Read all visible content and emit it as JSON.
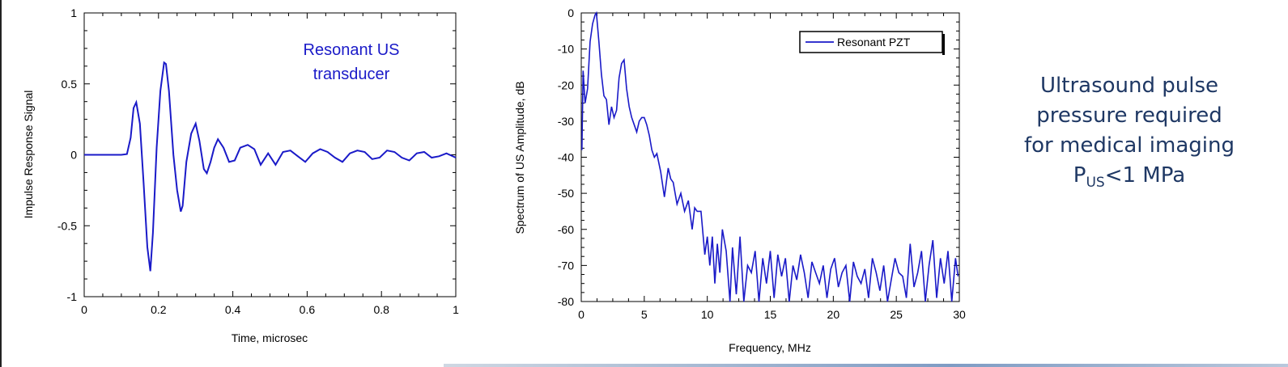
{
  "colors": {
    "series": "#1a1ac8",
    "text_note": "#1f3864",
    "axis": "#000000"
  },
  "chart_data": [
    {
      "type": "line",
      "title": "",
      "xlabel": "Time, microsec",
      "ylabel": "Impulse Response Signal",
      "xlim": [
        0,
        1
      ],
      "ylim": [
        -1,
        1
      ],
      "xticks": [
        "0",
        "0.2",
        "0.4",
        "0.6",
        "0.8",
        "1"
      ],
      "yticks": [
        "1",
        "0.5",
        "0",
        "-0.5",
        "-1"
      ],
      "annotation": [
        "Resonant US",
        "transducer"
      ],
      "series": [
        {
          "x": [
            0,
            0.1,
            0.115,
            0.125,
            0.133,
            0.14,
            0.15,
            0.16,
            0.17,
            0.178,
            0.185,
            0.195,
            0.205,
            0.215,
            0.22,
            0.228,
            0.24,
            0.25,
            0.26,
            0.265,
            0.275,
            0.288,
            0.3,
            0.31,
            0.322,
            0.33,
            0.34,
            0.35,
            0.36,
            0.375,
            0.39,
            0.405,
            0.42,
            0.44,
            0.458,
            0.475,
            0.495,
            0.515,
            0.535,
            0.555,
            0.575,
            0.595,
            0.615,
            0.635,
            0.655,
            0.675,
            0.695,
            0.715,
            0.735,
            0.755,
            0.775,
            0.795,
            0.815,
            0.835,
            0.855,
            0.875,
            0.895,
            0.915,
            0.935,
            0.955,
            0.975,
            1.0
          ],
          "y": [
            0,
            0,
            0.005,
            0.12,
            0.33,
            0.37,
            0.22,
            -0.2,
            -0.65,
            -0.82,
            -0.55,
            0.05,
            0.45,
            0.65,
            0.64,
            0.45,
            0.0,
            -0.25,
            -0.4,
            -0.36,
            -0.05,
            0.15,
            0.22,
            0.1,
            -0.1,
            -0.13,
            -0.05,
            0.05,
            0.11,
            0.05,
            -0.05,
            -0.04,
            0.05,
            0.07,
            0.04,
            -0.07,
            0.01,
            -0.07,
            0.02,
            0.03,
            -0.01,
            -0.05,
            0.01,
            0.04,
            0.02,
            -0.02,
            -0.05,
            0.01,
            0.03,
            0.02,
            -0.03,
            -0.02,
            0.03,
            0.02,
            -0.02,
            -0.04,
            0.01,
            0.02,
            -0.02,
            -0.01,
            0.01,
            -0.02
          ]
        }
      ]
    },
    {
      "type": "line",
      "title": "",
      "xlabel": "Frequency, MHz",
      "ylabel": "Spectrum of US Amplitude, dB",
      "xlim": [
        0,
        30
      ],
      "ylim": [
        -80,
        0
      ],
      "xticks": [
        "0",
        "5",
        "10",
        "15",
        "20",
        "25",
        "30"
      ],
      "yticks": [
        "0",
        "-10",
        "-20",
        "-30",
        "-40",
        "-50",
        "-60",
        "-70",
        "-80"
      ],
      "legend": {
        "position": "top-right",
        "entries": [
          "Resonant PZT"
        ]
      },
      "series": [
        {
          "name": "Resonant PZT",
          "x": [
            0.05,
            0.15,
            0.3,
            0.5,
            0.7,
            0.9,
            1.1,
            1.2,
            1.4,
            1.6,
            1.8,
            2.0,
            2.2,
            2.4,
            2.6,
            2.8,
            3.0,
            3.2,
            3.4,
            3.6,
            3.8,
            4.0,
            4.2,
            4.4,
            4.6,
            4.8,
            5.0,
            5.2,
            5.4,
            5.6,
            5.8,
            6.0,
            6.3,
            6.6,
            6.9,
            7.1,
            7.3,
            7.6,
            7.9,
            8.2,
            8.5,
            8.8,
            9.0,
            9.2,
            9.5,
            9.8,
            10.0,
            10.2,
            10.4,
            10.6,
            10.8,
            11.0,
            11.2,
            11.5,
            11.8,
            12.0,
            12.3,
            12.6,
            12.9,
            13.2,
            13.5,
            13.8,
            14.1,
            14.4,
            14.7,
            15.0,
            15.3,
            15.6,
            15.9,
            16.2,
            16.5,
            16.8,
            17.1,
            17.4,
            17.7,
            18.0,
            18.3,
            18.6,
            18.9,
            19.2,
            19.5,
            19.8,
            20.1,
            20.4,
            20.7,
            21.0,
            21.3,
            21.6,
            21.9,
            22.2,
            22.5,
            22.8,
            23.1,
            23.4,
            23.7,
            24.0,
            24.3,
            24.6,
            24.9,
            25.2,
            25.5,
            25.8,
            26.1,
            26.4,
            26.7,
            27.0,
            27.3,
            27.6,
            27.9,
            28.2,
            28.5,
            28.8,
            29.1,
            29.4,
            29.7,
            29.9
          ],
          "y": [
            -38,
            -16,
            -25,
            -21,
            -8,
            -3,
            -0.5,
            0,
            -8,
            -17,
            -23,
            -24,
            -31,
            -26,
            -29,
            -27,
            -18,
            -14,
            -13,
            -21,
            -26,
            -29,
            -31,
            -33,
            -30,
            -29,
            -29,
            -31,
            -34,
            -38,
            -40,
            -39,
            -44,
            -51,
            -43,
            -46,
            -47,
            -53,
            -50,
            -55,
            -52,
            -60,
            -54,
            -55,
            -55,
            -67,
            -62,
            -70,
            -62,
            -75,
            -64,
            -72,
            -60,
            -66,
            -80,
            -65,
            -78,
            -62,
            -80,
            -70,
            -72,
            -66,
            -80,
            -68,
            -75,
            -66,
            -79,
            -67,
            -73,
            -68,
            -80,
            -70,
            -74,
            -67,
            -72,
            -79,
            -69,
            -72,
            -75,
            -70,
            -79,
            -71,
            -68,
            -76,
            -72,
            -70,
            -80,
            -69,
            -73,
            -75,
            -71,
            -79,
            -68,
            -72,
            -77,
            -70,
            -80,
            -74,
            -68,
            -72,
            -73,
            -79,
            -64,
            -76,
            -72,
            -66,
            -80,
            -70,
            -63,
            -79,
            -68,
            -75,
            -66,
            -80,
            -68,
            -73
          ]
        }
      ]
    }
  ],
  "side_note": {
    "lines": [
      "Ultrasound pulse",
      "pressure required",
      "for medical imaging"
    ],
    "last_line": {
      "prefix": "P",
      "subscript": "US",
      "suffix": "<1 MPa"
    }
  }
}
